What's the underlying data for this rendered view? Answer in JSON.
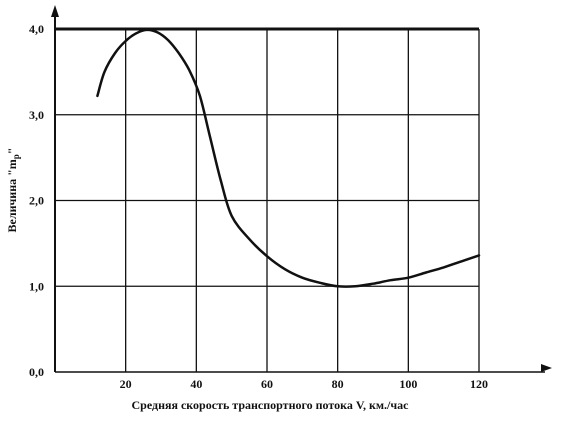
{
  "chart_data": {
    "type": "line",
    "title": "",
    "xlabel": "Средняя скорость транспортного потока V, км./час",
    "ylabel_prefix": "Величина \"m",
    "ylabel_sub": "р",
    "ylabel_suffix": "\"",
    "xlim": [
      0,
      120
    ],
    "ylim": [
      0,
      4.0
    ],
    "x_ticks": [
      20,
      40,
      60,
      80,
      100,
      120
    ],
    "x_tick_labels": [
      "20",
      "40",
      "60",
      "80",
      "100",
      "120"
    ],
    "y_ticks": [
      0,
      1.0,
      2.0,
      3.0,
      4.0
    ],
    "y_tick_labels": [
      "0,0",
      "1,0",
      "2,0",
      "3,0",
      "4,0"
    ],
    "grid": true,
    "series": [
      {
        "x": [
          12,
          14,
          17,
          20,
          23,
          26,
          29,
          32,
          35,
          38,
          41,
          44,
          47,
          50,
          55,
          60,
          65,
          70,
          75,
          80,
          85,
          90,
          95,
          100,
          105,
          110,
          115,
          120
        ],
        "y": [
          3.22,
          3.5,
          3.72,
          3.86,
          3.95,
          3.99,
          3.96,
          3.87,
          3.72,
          3.52,
          3.22,
          2.72,
          2.22,
          1.82,
          1.55,
          1.35,
          1.2,
          1.1,
          1.04,
          1.0,
          1.0,
          1.03,
          1.07,
          1.1,
          1.16,
          1.22,
          1.29,
          1.36
        ]
      }
    ]
  }
}
